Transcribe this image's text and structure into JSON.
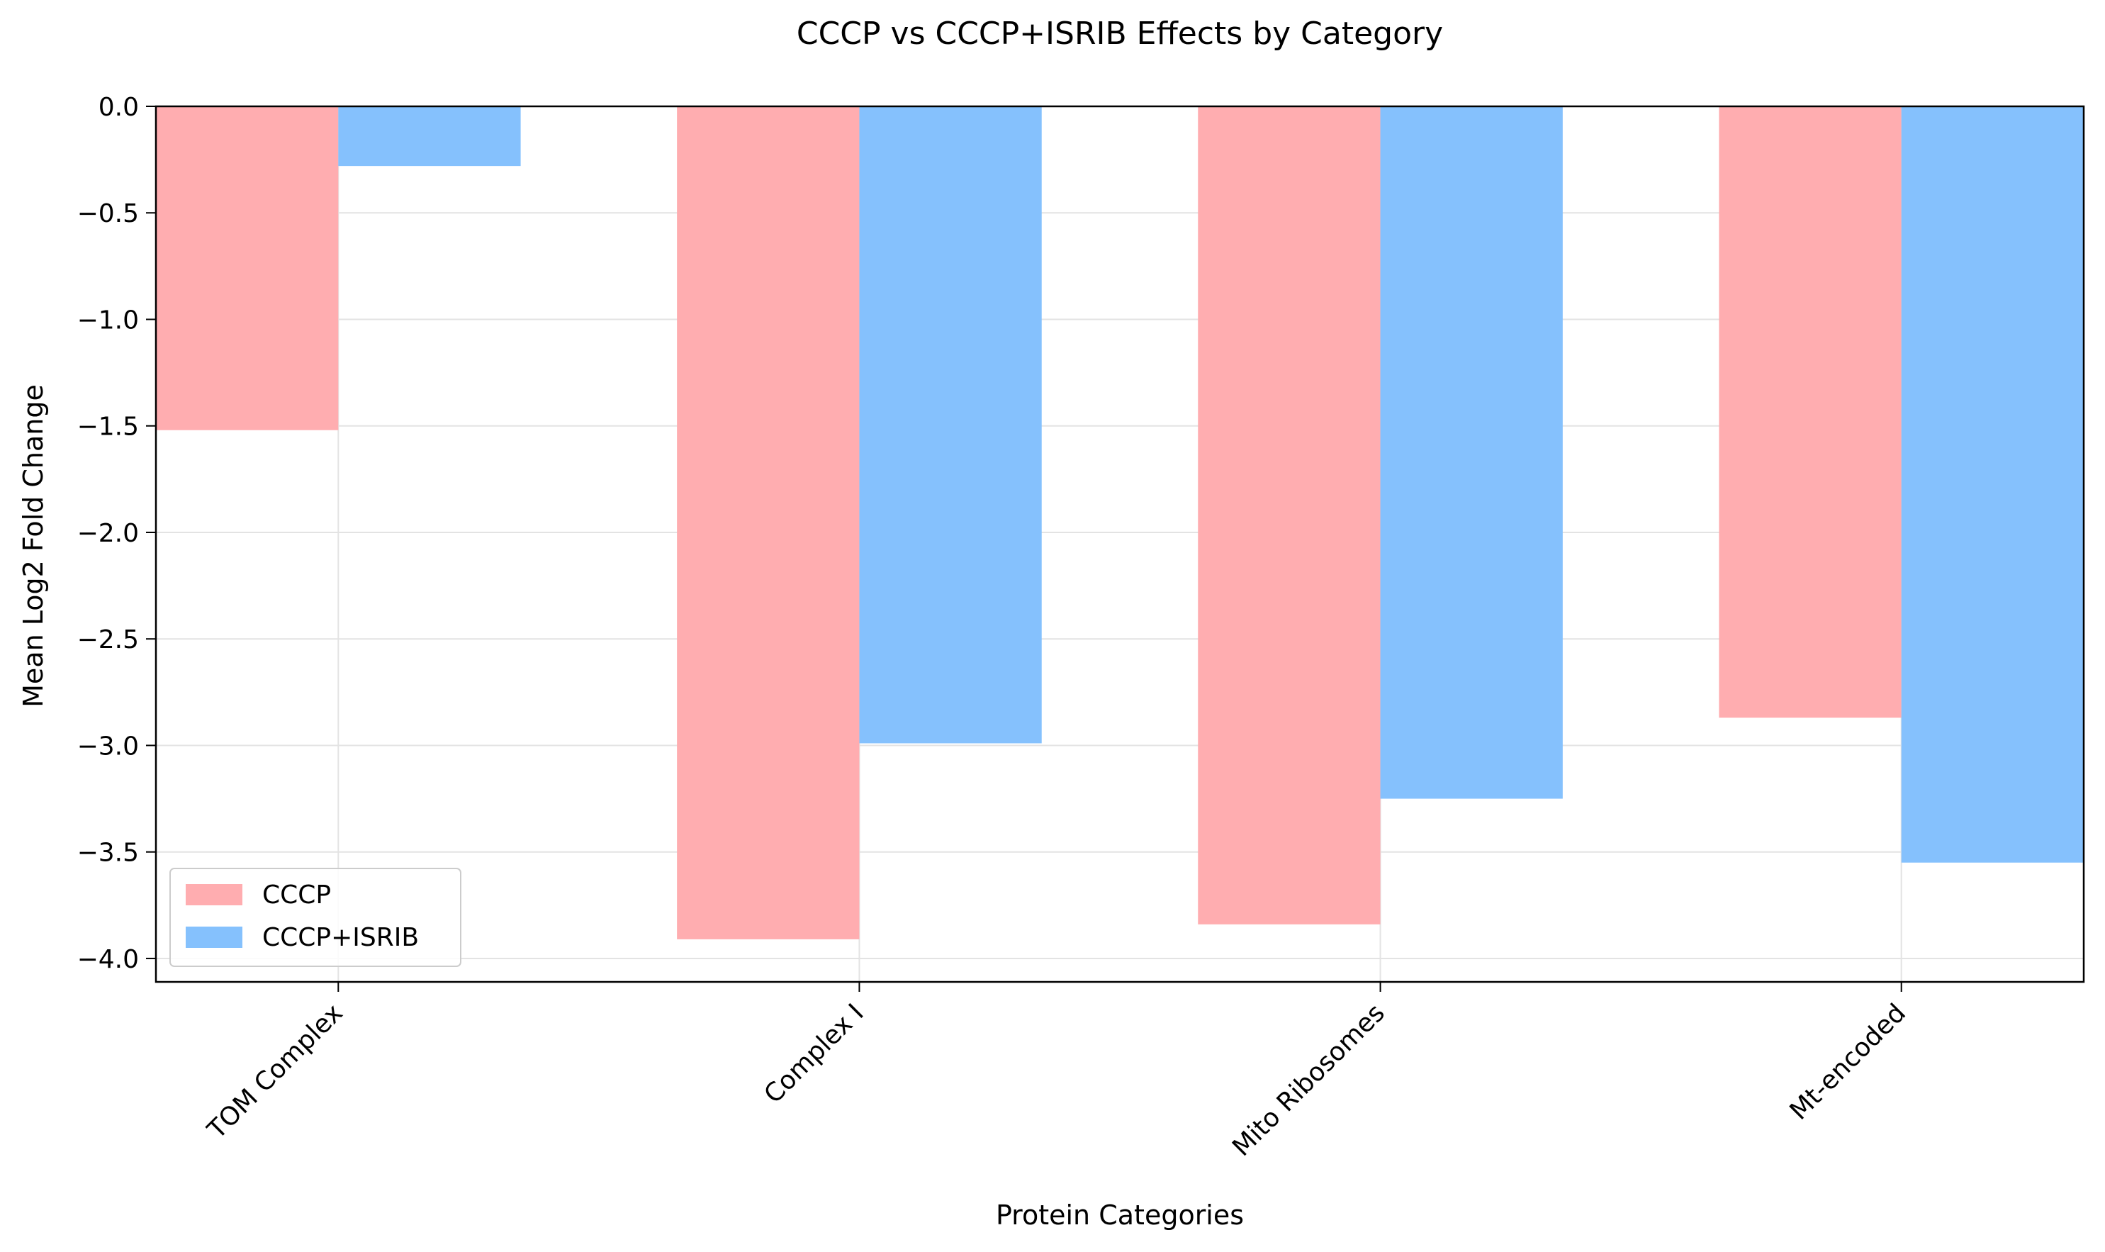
{
  "chart_data": {
    "type": "bar",
    "title": "CCCP vs CCCP+ISRIB Effects by Category",
    "xlabel": "Protein Categories",
    "ylabel": "Mean Log2 Fold Change",
    "categories": [
      "TOM Complex",
      "Complex I",
      "Mito Ribosomes",
      "Mt-encoded"
    ],
    "series": [
      {
        "name": "CCCP",
        "color": "#ffadb0",
        "values": [
          -1.52,
          -3.91,
          -3.84,
          -2.87
        ]
      },
      {
        "name": "CCCP+ISRIB",
        "color": "#85c1fd",
        "values": [
          -0.28,
          -2.99,
          -3.25,
          -3.55
        ]
      }
    ],
    "ylim": [
      -4.11,
      0.0
    ],
    "yticks": [
      0.0,
      -0.5,
      -1.0,
      -1.5,
      -2.0,
      -2.5,
      -3.0,
      -3.5,
      -4.0
    ],
    "ytick_labels": [
      "0.0",
      "−0.5",
      "−1.0",
      "−1.5",
      "−2.0",
      "−2.5",
      "−3.0",
      "−3.5",
      "−4.0"
    ],
    "grid": true,
    "legend_position": "lower-left"
  }
}
